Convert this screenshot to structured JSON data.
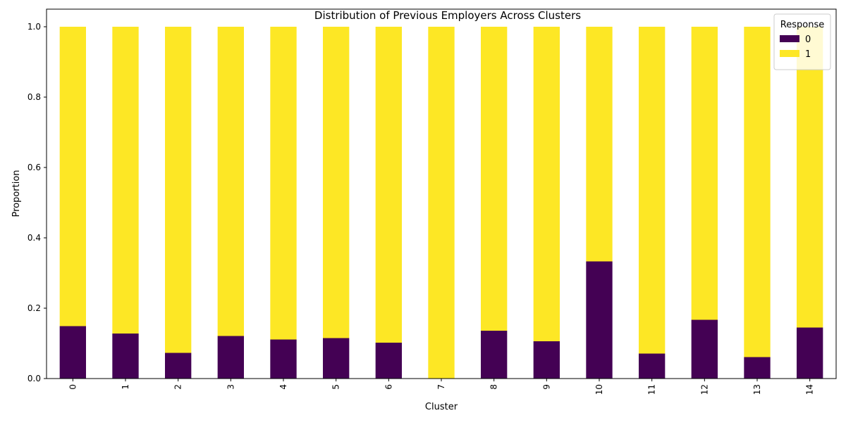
{
  "chart_data": {
    "type": "bar",
    "stacked": true,
    "title": "Distribution of Previous Employers Across Clusters",
    "xlabel": "Cluster",
    "ylabel": "Proportion",
    "categories": [
      "0",
      "1",
      "2",
      "3",
      "4",
      "5",
      "6",
      "7",
      "8",
      "9",
      "10",
      "11",
      "12",
      "13",
      "14"
    ],
    "series": [
      {
        "name": "0",
        "color": "#440154",
        "values": [
          0.149,
          0.128,
          0.073,
          0.121,
          0.111,
          0.115,
          0.102,
          0.0,
          0.136,
          0.106,
          0.333,
          0.071,
          0.167,
          0.061,
          0.145
        ]
      },
      {
        "name": "1",
        "color": "#fde725",
        "values": [
          0.851,
          0.872,
          0.927,
          0.879,
          0.889,
          0.885,
          0.898,
          1.0,
          0.864,
          0.894,
          0.667,
          0.929,
          0.833,
          0.939,
          0.855
        ]
      }
    ],
    "ylim": [
      0,
      1.05
    ],
    "yticks": [
      "0.0",
      "0.2",
      "0.4",
      "0.6",
      "0.8",
      "1.0"
    ],
    "ytick_values": [
      0,
      0.2,
      0.4,
      0.6,
      0.8,
      1.0
    ],
    "legend": {
      "title": "Response",
      "position": "top-right"
    },
    "grid": false
  }
}
